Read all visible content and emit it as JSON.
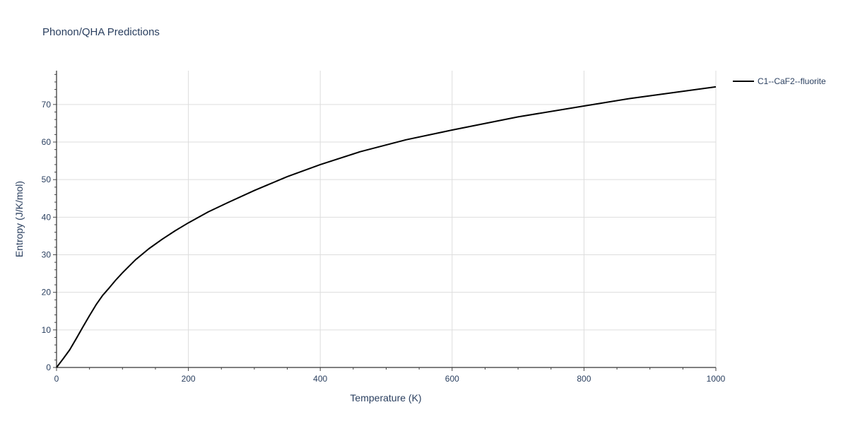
{
  "chart_data": {
    "type": "line",
    "title": "Phonon/QHA Predictions",
    "xlabel": "Temperature (K)",
    "ylabel": "Entropy (J/K/mol)",
    "xlim": [
      0,
      1000
    ],
    "ylim": [
      0,
      79
    ],
    "x_ticks": [
      0,
      200,
      400,
      600,
      800,
      1000
    ],
    "y_ticks": [
      0,
      10,
      20,
      30,
      40,
      50,
      60,
      70
    ],
    "grid": true,
    "legend_position": "top-right",
    "series": [
      {
        "name": "C1--CaF2--fluorite",
        "color": "#000000",
        "x": [
          0,
          10,
          20,
          30,
          40,
          50,
          60,
          70,
          80,
          90,
          100,
          120,
          140,
          160,
          180,
          200,
          230,
          260,
          300,
          350,
          400,
          460,
          530,
          600,
          700,
          800,
          870,
          1000
        ],
        "y": [
          0,
          2.3,
          4.7,
          7.7,
          10.8,
          13.8,
          16.7,
          19.2,
          21.2,
          23.3,
          25.2,
          28.7,
          31.6,
          34.1,
          36.4,
          38.5,
          41.4,
          43.9,
          47.1,
          50.8,
          54.0,
          57.4,
          60.6,
          63.2,
          66.7,
          69.6,
          71.6,
          74.7
        ]
      }
    ]
  }
}
